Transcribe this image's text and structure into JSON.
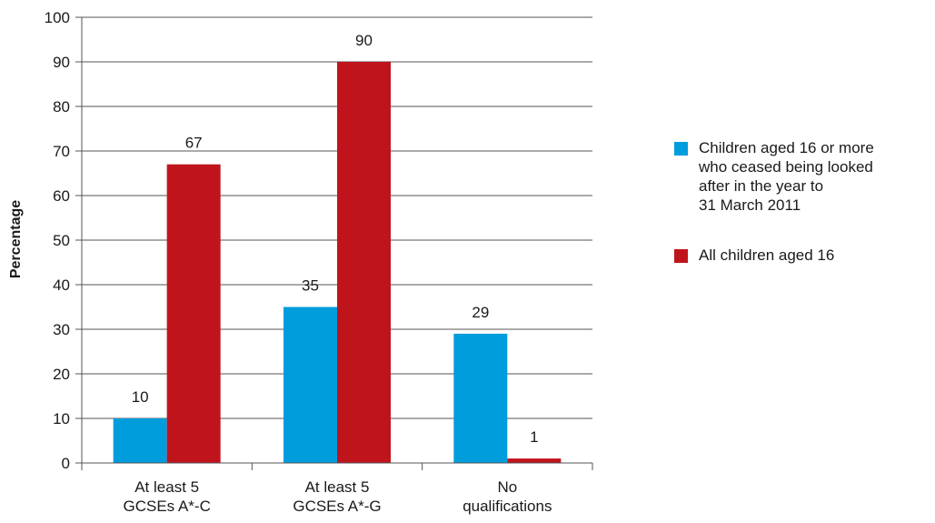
{
  "chart_data": {
    "type": "bar",
    "title": "",
    "xlabel": "",
    "ylabel": "Percentage",
    "ylim": [
      0,
      100
    ],
    "yticks": [
      0,
      10,
      20,
      30,
      40,
      50,
      60,
      70,
      80,
      90,
      100
    ],
    "categories": [
      "At least 5\nGCSEs A*-C",
      "At least 5\nGCSEs A*-G",
      "No\nqualifications"
    ],
    "series": [
      {
        "name": "Children aged 16 or more\nwho ceased being looked\nafter in the year to\n31 March 2011",
        "color": "#009ddd",
        "values": [
          10,
          35,
          29
        ],
        "labels": [
          "10",
          "35",
          "29"
        ]
      },
      {
        "name": "All children aged 16",
        "color": "#c0141c",
        "values": [
          67,
          90,
          1
        ],
        "labels": [
          "67",
          "90",
          "1"
        ]
      }
    ],
    "grid": true,
    "legend_position": "right"
  }
}
